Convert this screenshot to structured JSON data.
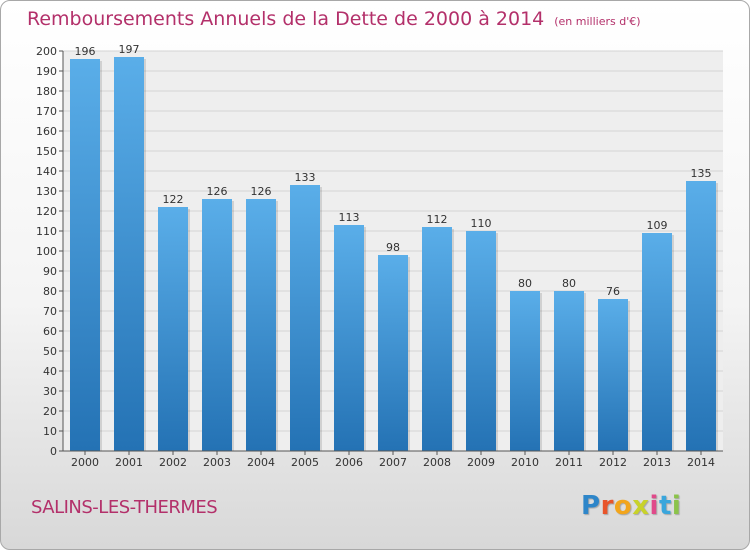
{
  "header": {
    "title": "Remboursements Annuels de la Dette de 2000 à 2014",
    "unit_note": "(en milliers d'€)"
  },
  "footer": {
    "city": "SALINS-LES-THERMES",
    "logo_text": "Proxiti",
    "logo_colors": [
      "#2e86c9",
      "#e8542a",
      "#f2a51c",
      "#c8d22a",
      "#e04a8a",
      "#3aa6dc",
      "#8bc34a"
    ]
  },
  "colors": {
    "bar_top": "#5aaee9",
    "bar_bottom": "#2472b4",
    "title": "#b3306a",
    "grid": "#d4d4d4",
    "axis": "#555555",
    "text": "#333333"
  },
  "chart_data": {
    "type": "bar",
    "categories": [
      "2000",
      "2001",
      "2002",
      "2003",
      "2004",
      "2005",
      "2006",
      "2007",
      "2008",
      "2009",
      "2010",
      "2011",
      "2012",
      "2013",
      "2014"
    ],
    "values": [
      196,
      197,
      122,
      126,
      126,
      133,
      113,
      98,
      112,
      110,
      80,
      80,
      76,
      109,
      135
    ],
    "data_labels": [
      "196",
      "197",
      "122",
      "126",
      "126",
      "133",
      "113",
      "98",
      "112",
      "110",
      "80",
      "80",
      "76",
      "109",
      "135"
    ],
    "y_ticks": [
      "0",
      "10",
      "20",
      "30",
      "40",
      "50",
      "60",
      "70",
      "80",
      "90",
      "100",
      "110",
      "120",
      "130",
      "140",
      "150",
      "160",
      "170",
      "180",
      "190",
      "200"
    ],
    "ylim": [
      0,
      200
    ],
    "grid": true,
    "legend": false
  }
}
